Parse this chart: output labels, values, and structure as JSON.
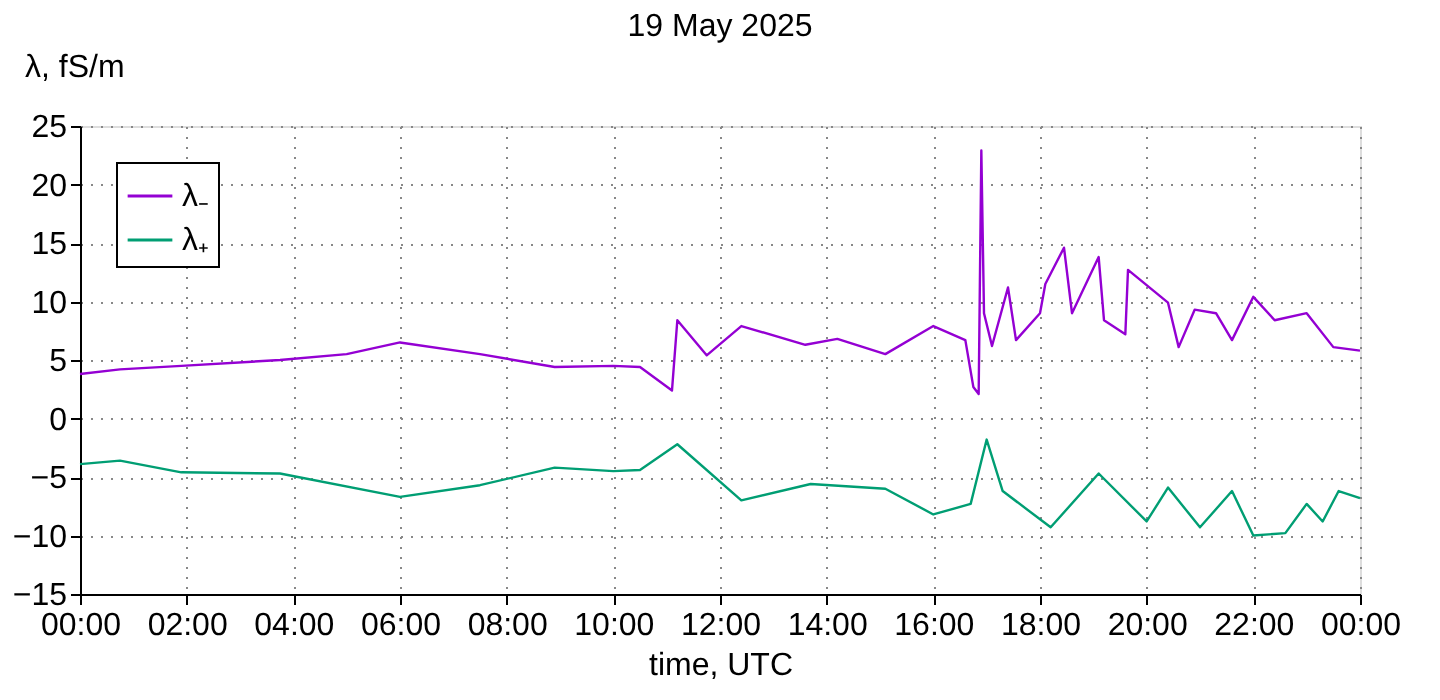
{
  "chart_data": {
    "type": "line",
    "title": "19 May 2025",
    "xlabel": "time, UTC",
    "ylabel": "λ, fS/m",
    "xlim": [
      0,
      24
    ],
    "xticks": [
      {
        "value": 0,
        "label": "00:00"
      },
      {
        "value": 2,
        "label": "02:00"
      },
      {
        "value": 4,
        "label": "04:00"
      },
      {
        "value": 6,
        "label": "06:00"
      },
      {
        "value": 8,
        "label": "08:00"
      },
      {
        "value": 10,
        "label": "10:00"
      },
      {
        "value": 12,
        "label": "12:00"
      },
      {
        "value": 14,
        "label": "14:00"
      },
      {
        "value": 16,
        "label": "16:00"
      },
      {
        "value": 18,
        "label": "18:00"
      },
      {
        "value": 20,
        "label": "20:00"
      },
      {
        "value": 22,
        "label": "22:00"
      },
      {
        "value": 24,
        "label": "00:00"
      }
    ],
    "ylim": [
      -15,
      25
    ],
    "yticks": [
      -15,
      -10,
      -5,
      0,
      5,
      10,
      15,
      20,
      25
    ],
    "grid": true,
    "legend": "top left",
    "line_style": "solid",
    "series": [
      {
        "name": "λ₋",
        "color": "#9400d3",
        "x": [
          0,
          0.75,
          1.9,
          3.75,
          5,
          6,
          7.5,
          8.9,
          10,
          10.5,
          11.1,
          11.2,
          11.75,
          12.4,
          13.6,
          14.2,
          15.1,
          16,
          16.6,
          16.75,
          16.85,
          16.9,
          16.95,
          17.1,
          17.4,
          17.55,
          18,
          18.1,
          18.45,
          18.6,
          19.1,
          19.2,
          19.6,
          19.65,
          20.4,
          20.6,
          20.9,
          21.3,
          21.6,
          22,
          22.4,
          23,
          23.5,
          24
        ],
        "values": [
          3.8,
          4.2,
          4.5,
          5,
          5.5,
          6.5,
          5.5,
          4.4,
          4.5,
          4.4,
          2.4,
          8.4,
          5.4,
          7.9,
          6.3,
          6.8,
          5.5,
          7.9,
          6.7,
          2.7,
          2.1,
          22.9,
          9,
          6.2,
          11.2,
          6.7,
          9,
          11.5,
          14.6,
          9,
          13.8,
          8.4,
          7.2,
          12.7,
          9.9,
          6.1,
          9.3,
          9,
          6.7,
          10.4,
          8.4,
          9,
          6.1,
          5.8
        ]
      },
      {
        "name": "λ₊",
        "color": "#009e73",
        "x": [
          0,
          0.75,
          1.9,
          3.75,
          6,
          7.5,
          8.9,
          10,
          10.5,
          11.2,
          12.4,
          13.7,
          15.1,
          16,
          16.7,
          17,
          17.3,
          18.2,
          19.1,
          20,
          20.4,
          21,
          21.6,
          22,
          22.6,
          23,
          23.3,
          23.6,
          24
        ],
        "values": [
          -3.9,
          -3.6,
          -4.6,
          -4.7,
          -6.7,
          -5.7,
          -4.2,
          -4.5,
          -4.4,
          -2.2,
          -7,
          -5.6,
          -6,
          -8.2,
          -7.3,
          -1.8,
          -6.2,
          -9.3,
          -4.7,
          -8.8,
          -5.9,
          -9.3,
          -6.2,
          -10,
          -9.8,
          -7.3,
          -8.8,
          -6.2,
          -6.8
        ]
      }
    ]
  }
}
